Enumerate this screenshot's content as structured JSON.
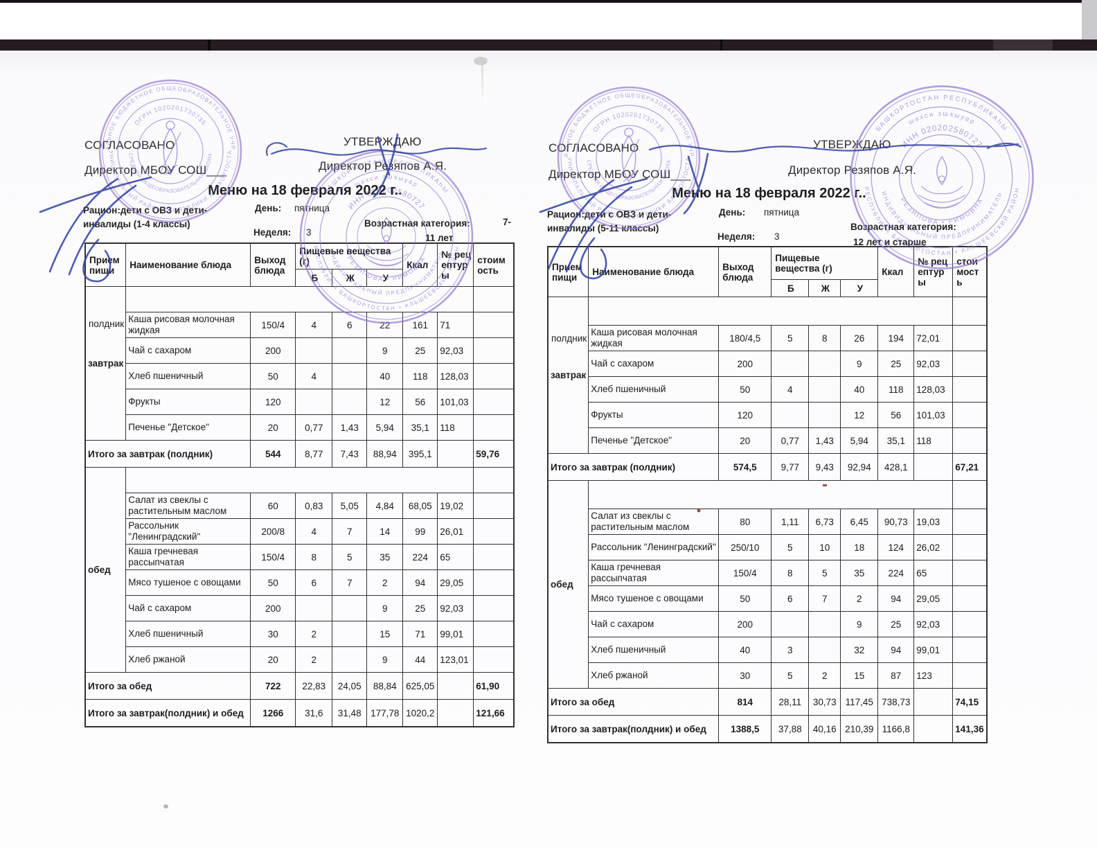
{
  "menus": [
    {
      "approvals": {
        "agreed_label": "СОГЛАСОВАНО",
        "agreed_signatory": "Директор МБОУ СОШ___",
        "approve_label": "УТВЕРЖДАЮ",
        "approve_signatory": "Директор Резяпов А.Я."
      },
      "title": "Меню на 18 февраля  2022 г..",
      "ration": {
        "line1": "Рацион:дети с ОВЗ и дети-",
        "line2": "инвалиды (1-4 классы)"
      },
      "meta": {
        "day_label": "День:",
        "day": "пятница",
        "week_label": "Неделя:",
        "week": "3",
        "age_label": "Возрастная категория:",
        "age_part1": "7-",
        "age_part2": "11 лет"
      },
      "table": {
        "col_meal": "Прием пищи",
        "col_dish": "Наименование блюда",
        "col_out": "Выход блюда",
        "col_nutrients": "Пищевые вещества (г)",
        "col_b": "Б",
        "col_zh": "Ж",
        "col_u": "У",
        "col_kcal": "Ккал",
        "col_recipe": "№ рецептуры",
        "col_cost": "стоимость",
        "breakfast": {
          "meal1": "завтрак",
          "meal2": "полдник",
          "rows": [
            [
              "Каша рисовая молочная жидкая",
              "150/4",
              "4",
              "6",
              "22",
              "161",
              "71",
              ""
            ],
            [
              "Чай с сахаром",
              "200",
              "",
              "",
              "9",
              "25",
              "92,03",
              ""
            ],
            [
              "Хлеб пшеничный",
              "50",
              "4",
              "",
              "40",
              "118",
              "128,03",
              ""
            ],
            [
              "Фрукты",
              "120",
              "",
              "",
              "12",
              "56",
              "101,03",
              ""
            ],
            [
              "Печенье \"Детское\"",
              "20",
              "0,77",
              "1,43",
              "5,94",
              "35,1",
              "118",
              ""
            ]
          ],
          "total": [
            "Итого за завтрак (полдник)",
            "544",
            "8,77",
            "7,43",
            "88,94",
            "395,1",
            "",
            "59,76"
          ]
        },
        "lunch": {
          "meal1": "обед",
          "meal2": "",
          "rows": [
            [
              "Салат из свеклы с растительным маслом",
              "60",
              "0,83",
              "5,05",
              "4,84",
              "68,05",
              "19,02",
              ""
            ],
            [
              "Рассольник \"Ленинградский\"",
              "200/8",
              "4",
              "7",
              "14",
              "99",
              "26,01",
              ""
            ],
            [
              "Каша гречневая рассыпчатая",
              "150/4",
              "8",
              "5",
              "35",
              "224",
              "65",
              ""
            ],
            [
              "Мясо тушеное с овощами",
              "50",
              "6",
              "7",
              "2",
              "94",
              "29,05",
              ""
            ],
            [
              "Чай с сахаром",
              "200",
              "",
              "",
              "9",
              "25",
              "92,03",
              ""
            ],
            [
              "Хлеб пшеничный",
              "30",
              "2",
              "",
              "15",
              "71",
              "99,01",
              ""
            ],
            [
              "Хлеб ржаной",
              "20",
              "2",
              "",
              "9",
              "44",
              "123,01",
              ""
            ]
          ],
          "total": [
            "Итого за обед",
            "722",
            "22,83",
            "24,05",
            "88,84",
            "625,05",
            "",
            "61,90"
          ]
        },
        "grand_total": [
          "Итого за завтрак(полдник) и обед",
          "1266",
          "31,6",
          "31,48",
          "177,78",
          "1020,2",
          "",
          "121,66"
        ]
      }
    },
    {
      "approvals": {
        "agreed_label": "СОГЛАСОВАНО",
        "agreed_signatory": "Директор МБОУ СОШ___",
        "approve_label": "УТВЕРЖДАЮ",
        "approve_signatory": "Директор Резяпов А.Я."
      },
      "title": "Меню на 18 февраля  2022 г..",
      "ration": {
        "line1": "Рацион:дети с ОВЗ и дети-",
        "line2": "инвалиды (5-11 классы)"
      },
      "meta": {
        "day_label": "День:",
        "day": "пятница",
        "week_label": "Неделя:",
        "week": "3",
        "age_label": "Возрастная категория:",
        "age_part1": "",
        "age_part2": "12 лет и старше"
      },
      "table": {
        "col_meal": "Прием пищи",
        "col_dish": "Наименование блюда",
        "col_out": "Выход блюда",
        "col_nutrients": "Пищевые вещества (г)",
        "col_b": "Б",
        "col_zh": "Ж",
        "col_u": "У",
        "col_kcal": "Ккал",
        "col_recipe": "№ рецептуры",
        "col_cost": "стоимость",
        "breakfast": {
          "meal1": "завтрак",
          "meal2": "полдник",
          "rows": [
            [
              "Каша рисовая молочная жидкая",
              "180/4,5",
              "5",
              "8",
              "26",
              "194",
              "72,01",
              ""
            ],
            [
              "Чай с сахаром",
              "200",
              "",
              "",
              "9",
              "25",
              "92,03",
              ""
            ],
            [
              "Хлеб пшеничный",
              "50",
              "4",
              "",
              "40",
              "118",
              "128,03",
              ""
            ],
            [
              "Фрукты",
              "120",
              "",
              "",
              "12",
              "56",
              "101,03",
              ""
            ],
            [
              "Печенье \"Детское\"",
              "20",
              "0,77",
              "1,43",
              "5,94",
              "35,1",
              "118",
              ""
            ]
          ],
          "total": [
            "Итого за завтрак (полдник)",
            "574,5",
            "9,77",
            "9,43",
            "92,94",
            "428,1",
            "",
            "67,21"
          ]
        },
        "lunch": {
          "meal1": "обед",
          "meal2": "",
          "rows": [
            [
              "Салат из свеклы с растительным маслом",
              "80",
              "1,11",
              "6,73",
              "6,45",
              "90,73",
              "19,03",
              ""
            ],
            [
              "Рассольник \"Ленинградский\"",
              "250/10",
              "5",
              "10",
              "18",
              "124",
              "26,02",
              ""
            ],
            [
              "Каша гречневая рассыпчатая",
              "150/4",
              "8",
              "5",
              "35",
              "224",
              "65",
              ""
            ],
            [
              "Мясо тушеное с овощами",
              "50",
              "6",
              "7",
              "2",
              "94",
              "29,05",
              ""
            ],
            [
              "Чай с сахаром",
              "200",
              "",
              "",
              "9",
              "25",
              "92,03",
              ""
            ],
            [
              "Хлеб пшеничный",
              "40",
              "3",
              "",
              "32",
              "94",
              "99,01",
              ""
            ],
            [
              "Хлеб ржаной",
              "30",
              "5",
              "2",
              "15",
              "87",
              "123",
              ""
            ]
          ],
          "total": [
            "Итого за обед",
            "814",
            "28,11",
            "30,73",
            "117,45",
            "738,73",
            "",
            "74,15"
          ]
        },
        "grand_total": [
          "Итого за завтрак(полдник) и обед",
          "1388,5",
          "37,88",
          "40,16",
          "210,39",
          "1166,8",
          "",
          "141,36"
        ]
      }
    }
  ],
  "stamps": {
    "ink_color": "#9478cf",
    "school": {
      "ring_top": "МУНИЦИПАЛЬНОЕ БЮДЖЕТНОЕ ОБЩЕОБРАЗОВАТЕЛЬНОЕ УЧРЕЖДЕНИЕ",
      "ring_bottom": "МУНИЦИПАЛЬНЫЙ РАЙОН РЕСПУБЛИКИ БАШКОРТОСТАН",
      "ogrn": "ОГРН 1020201730735",
      "inner_bottom": "СРЕДНЯЯ ОБЩЕОБРАЗОВАТЕЛЬНАЯ ШКОЛА"
    },
    "ip": {
      "outer_top": "БАШКОРТОСТАН РЕСПУБЛИКАҺЫ",
      "outer_bottom": "РЕСПУБЛИКА БАШКОРТОСТАН • АЛЬШЕЕВСКИЙ РАЙОН",
      "mid_top": "шәхси эшҡыуар",
      "mid_bottom": "ИНДИВИДУАЛЬНЫЙ ПРЕДПРИНИМАТЕЛЬ",
      "inn": "ИНН 020202580727",
      "name": "РЕЗЯПОВА • РИМОВНА"
    }
  }
}
